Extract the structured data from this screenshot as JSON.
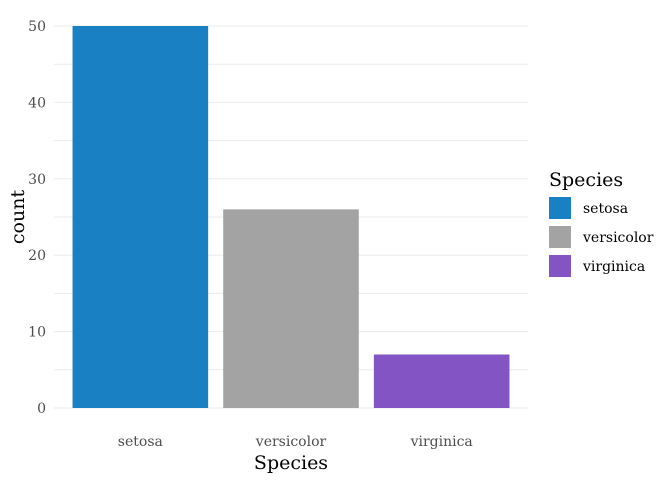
{
  "chart_data": {
    "type": "bar",
    "categories": [
      "setosa",
      "versicolor",
      "virginica"
    ],
    "values": [
      50,
      26,
      7
    ],
    "colors": [
      "#1a80c4",
      "#a3a3a3",
      "#8254c4"
    ],
    "xlabel": "Species",
    "ylabel": "count",
    "ylim": [
      0,
      50
    ],
    "yticks": [
      0,
      10,
      20,
      30,
      40,
      50
    ],
    "grid": true,
    "legend": {
      "title": "Species",
      "placement": "right",
      "entries": [
        "setosa",
        "versicolor",
        "virginica"
      ]
    }
  }
}
